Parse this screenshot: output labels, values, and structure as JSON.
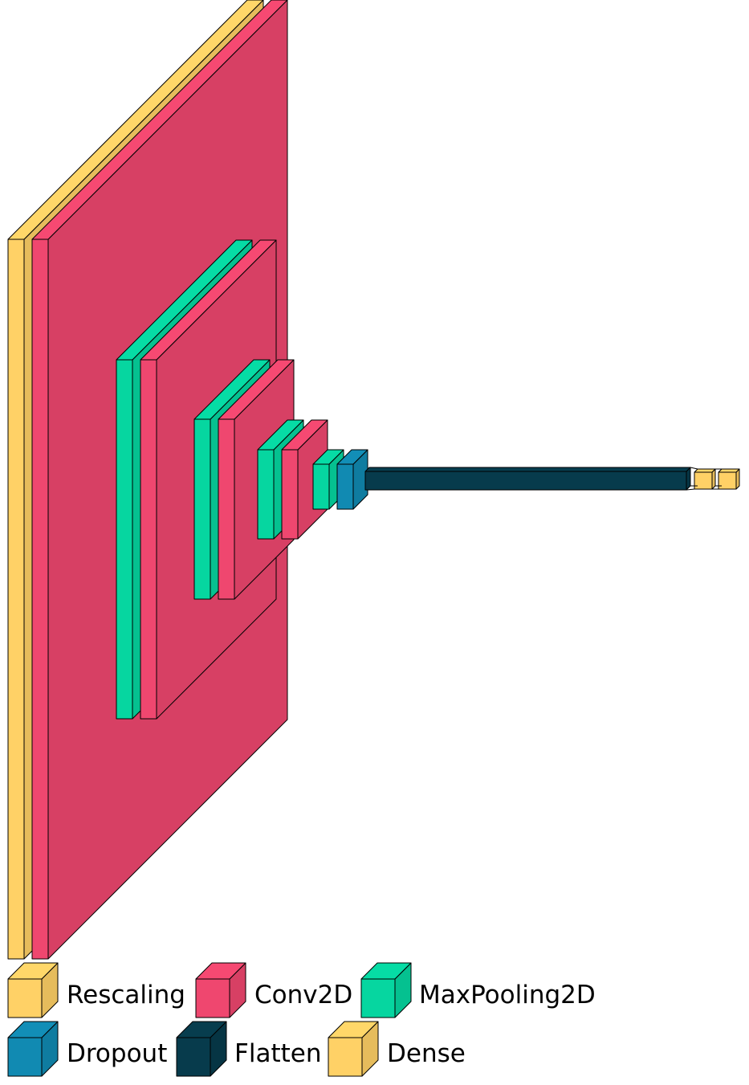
{
  "layer_types": {
    "rescaling": {
      "color": "#ffd166"
    },
    "conv2d": {
      "color": "#ef476f"
    },
    "maxpool": {
      "color": "#06d6a0"
    },
    "dropout": {
      "color": "#118ab2"
    },
    "flatten": {
      "color": "#073b4c"
    },
    "dense": {
      "color": "#ffd166"
    }
  },
  "layers": [
    {
      "type": "rescaling"
    },
    {
      "type": "conv2d"
    },
    {
      "type": "maxpool"
    },
    {
      "type": "conv2d"
    },
    {
      "type": "maxpool"
    },
    {
      "type": "conv2d"
    },
    {
      "type": "maxpool"
    },
    {
      "type": "conv2d"
    },
    {
      "type": "maxpool"
    },
    {
      "type": "dropout"
    },
    {
      "type": "flatten"
    },
    {
      "type": "dense"
    },
    {
      "type": "dense"
    }
  ],
  "legend": [
    {
      "type": "rescaling",
      "label": "Rescaling"
    },
    {
      "type": "conv2d",
      "label": "Conv2D"
    },
    {
      "type": "maxpool",
      "label": "MaxPooling2D"
    },
    {
      "type": "dropout",
      "label": "Dropout"
    },
    {
      "type": "flatten",
      "label": "Flatten"
    },
    {
      "type": "dense",
      "label": "Dense"
    }
  ]
}
